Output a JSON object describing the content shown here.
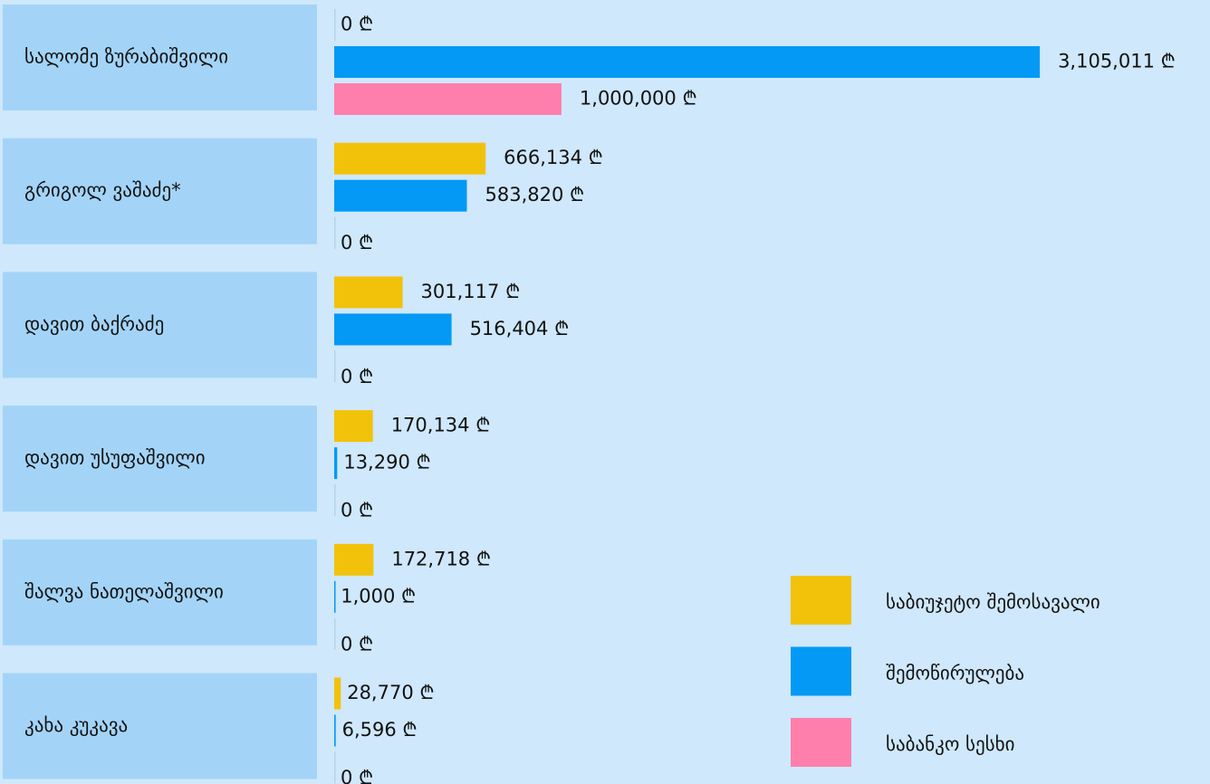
{
  "chart_data": {
    "type": "bar",
    "orientation": "horizontal",
    "categories": [
      "სალომე ზურაბიშვილი",
      "გრიგოლ ვაშაძე*",
      "დავით ბაქრაძე",
      "დავით უსუფაშვილი",
      "შალვა ნათელაშვილი",
      "კახა კუკავა"
    ],
    "series": [
      {
        "name": "საბიუჯეტო შემოსავალი",
        "color": "#f2c20a",
        "values": [
          0,
          666134,
          301117,
          170134,
          172718,
          28770
        ],
        "value_labels": [
          "0 ₾",
          "666,134 ₾",
          "301,117 ₾",
          "170,134 ₾",
          "172,718 ₾",
          "28,770 ₾"
        ]
      },
      {
        "name": "შემოწირულება",
        "color": "#0399f5",
        "values": [
          3105011,
          583820,
          516404,
          13290,
          1000,
          6596
        ],
        "value_labels": [
          "3,105,011 ₾",
          "583,820 ₾",
          "516,404 ₾",
          "13,290 ₾",
          "1,000 ₾",
          "6,596 ₾"
        ]
      },
      {
        "name": "საბანკო სესხი",
        "color": "#ff7fac",
        "values": [
          1000000,
          0,
          0,
          0,
          0,
          0
        ],
        "value_labels": [
          "1,000,000 ₾",
          "0 ₾",
          "0 ₾",
          "0 ₾",
          "0 ₾",
          "0 ₾"
        ]
      }
    ],
    "xlim": [
      0,
      3300000
    ],
    "legend": "bottom-right"
  }
}
